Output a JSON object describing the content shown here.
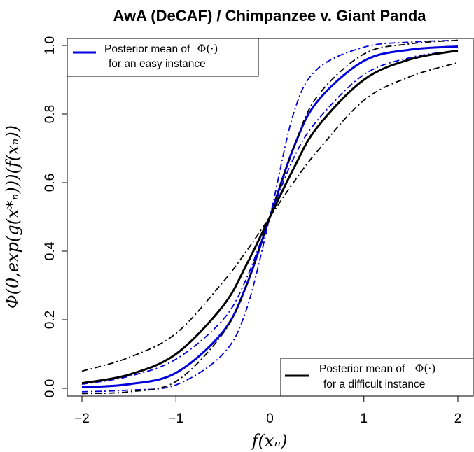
{
  "chart_data": {
    "type": "line",
    "title": "AwA (DeCAF) / Chimpanzee v. Giant Panda",
    "xlabel": "f(xₙ)",
    "ylabel": "Φ(0,exp(g(x*ₙ)))(f(xₙ))",
    "xlim": [
      -2,
      2
    ],
    "ylim": [
      0,
      1
    ],
    "x_ticks": [
      "−2",
      "−1",
      "0",
      "1",
      "2"
    ],
    "y_ticks": [
      "0.0",
      "0.2",
      "0.4",
      "0.6",
      "0.8",
      "1.0"
    ],
    "grid": false,
    "x": [
      -2,
      -1.5,
      -1,
      -0.5,
      -0.25,
      0,
      0.25,
      0.5,
      1,
      1.5,
      2
    ],
    "series": [
      {
        "name": "Posterior mean of Φ(·) for an easy instance",
        "color": "#0000dd",
        "style": "solid",
        "values": [
          0.003,
          0.012,
          0.045,
          0.165,
          0.3,
          0.5,
          0.7,
          0.835,
          0.955,
          0.988,
          0.997
        ]
      },
      {
        "color": "#0000dd",
        "style": "dashdot",
        "values": [
          -0.01,
          -0.005,
          0.01,
          0.1,
          0.23,
          0.5,
          0.8,
          0.93,
          0.995,
          1.01,
          1.015
        ]
      },
      {
        "color": "#0000dd",
        "style": "dashdot",
        "values": [
          0.012,
          0.035,
          0.085,
          0.2,
          0.32,
          0.5,
          0.67,
          0.78,
          0.915,
          0.965,
          0.985
        ]
      },
      {
        "name": "Posterior mean of Φ(·) for a difficult instance",
        "color": "#000000",
        "style": "solid",
        "values": [
          0.015,
          0.04,
          0.1,
          0.24,
          0.36,
          0.5,
          0.64,
          0.76,
          0.9,
          0.96,
          0.985
        ]
      },
      {
        "color": "#000000",
        "style": "dashdot",
        "values": [
          -0.015,
          -0.01,
          0.02,
          0.16,
          0.3,
          0.5,
          0.7,
          0.85,
          0.975,
          1.005,
          1.015
        ]
      },
      {
        "color": "#000000",
        "style": "dashdot",
        "values": [
          0.05,
          0.09,
          0.16,
          0.31,
          0.4,
          0.5,
          0.6,
          0.69,
          0.84,
          0.91,
          0.95
        ]
      }
    ],
    "legends": [
      {
        "position": "top-left",
        "line1_text": "Posterior mean of",
        "line1_math": "Φ(·)",
        "line2_text": "for an easy instance",
        "color": "#0000dd"
      },
      {
        "position": "bottom-right",
        "line1_text": "Posterior mean of",
        "line1_math": "Φ(·)",
        "line2_text": "for a difficult instance",
        "color": "#000000"
      }
    ]
  }
}
